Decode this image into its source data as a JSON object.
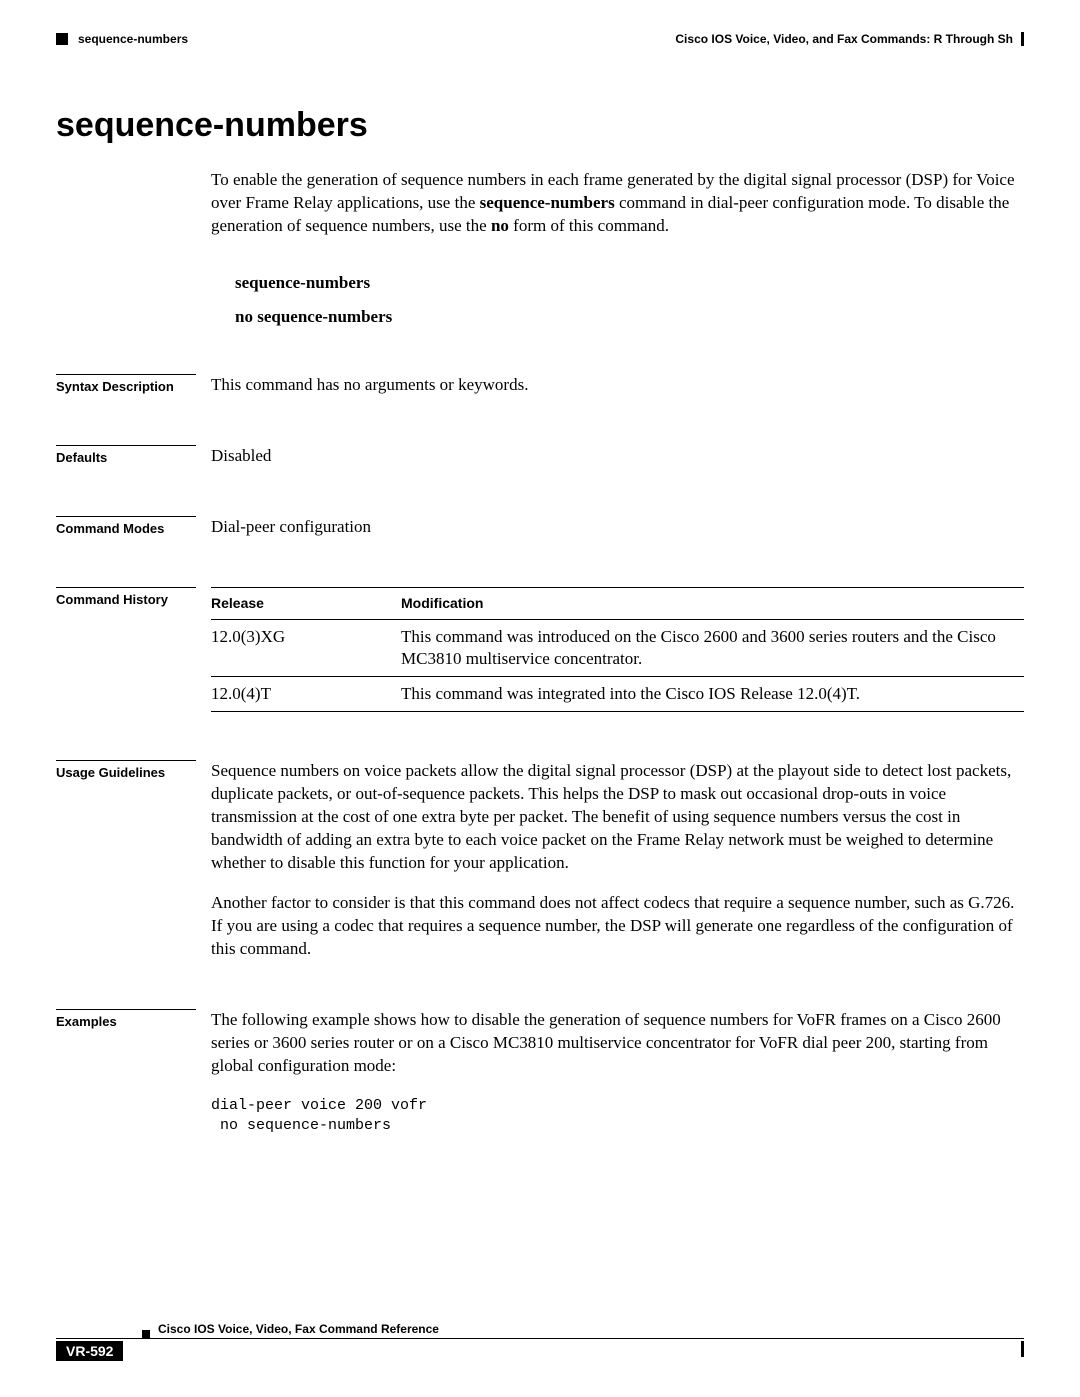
{
  "header": {
    "left_label": "sequence-numbers",
    "right_label": "Cisco IOS Voice, Video, and Fax Commands: R Through Sh"
  },
  "title": "sequence-numbers",
  "intro_parts": {
    "p1": "To enable the generation of sequence numbers in each frame generated by the digital signal processor (DSP) for Voice over Frame Relay applications, use the ",
    "b1": "sequence-numbers",
    "p2": " command in dial-peer configuration mode. To disable the generation of sequence numbers, use the ",
    "b2": "no",
    "p3": " form of this command."
  },
  "syntax": {
    "line1": "sequence-numbers",
    "line2": "no sequence-numbers"
  },
  "sections": {
    "syntax_desc": {
      "label": "Syntax Description",
      "text": "This command has no arguments or keywords."
    },
    "defaults": {
      "label": "Defaults",
      "text": "Disabled"
    },
    "command_modes": {
      "label": "Command Modes",
      "text": "Dial-peer configuration"
    },
    "command_history": {
      "label": "Command History",
      "columns": {
        "release": "Release",
        "modification": "Modification"
      },
      "rows": [
        {
          "release": "12.0(3)XG",
          "modification": "This command was introduced on the Cisco 2600 and 3600 series routers and the Cisco MC3810 multiservice concentrator."
        },
        {
          "release": "12.0(4)T",
          "modification": "This command was integrated into the Cisco IOS Release 12.0(4)T."
        }
      ]
    },
    "usage": {
      "label": "Usage Guidelines",
      "p1": "Sequence numbers on voice packets allow the digital signal processor (DSP) at the playout side to detect lost packets, duplicate packets, or out-of-sequence packets. This helps the DSP to mask out occasional drop-outs in voice transmission at the cost of one extra byte per packet. The benefit of using sequence numbers versus the cost in bandwidth of adding an extra byte to each voice packet on the Frame Relay network must be weighed to determine whether to disable this function for your application.",
      "p2": "Another factor to consider is that this command does not affect codecs that require a sequence number, such as G.726. If you are using a codec that requires a sequence number, the DSP will generate one regardless of the configuration of this command."
    },
    "examples": {
      "label": "Examples",
      "text": "The following example shows how to disable the generation of sequence numbers for VoFR frames on a Cisco 2600 series or 3600 series router or on a Cisco MC3810 multiservice concentrator for VoFR dial peer 200, starting from global configuration mode:",
      "code": "dial-peer voice 200 vofr\n no sequence-numbers"
    }
  },
  "footer": {
    "title": "Cisco IOS Voice, Video, Fax Command Reference",
    "page_number": "VR-592"
  }
}
